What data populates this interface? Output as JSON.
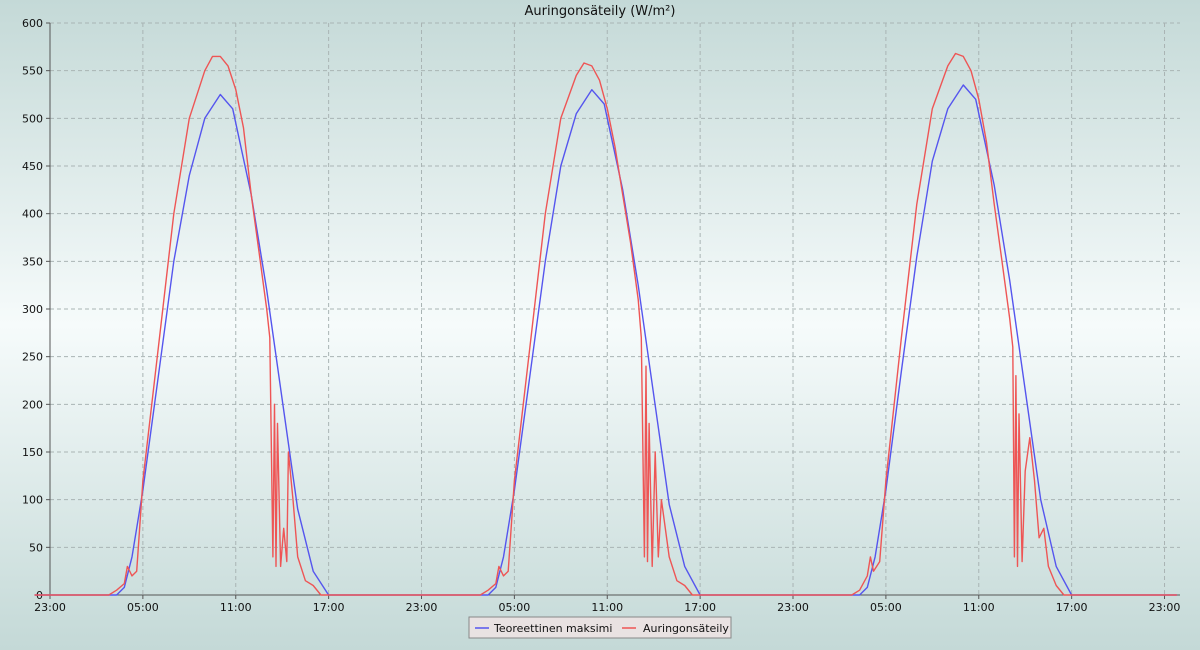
{
  "chart_data": {
    "type": "line",
    "title": "Auringonsäteily (W/m²)",
    "xlabel": "",
    "ylabel": "",
    "ylim": [
      0,
      600
    ],
    "yticks": [
      0,
      50,
      100,
      150,
      200,
      250,
      300,
      350,
      400,
      450,
      500,
      550,
      600
    ],
    "xlim_hours": [
      0,
      73
    ],
    "xticks": [
      {
        "hour": 0,
        "label": "23:00"
      },
      {
        "hour": 6,
        "label": "05:00"
      },
      {
        "hour": 12,
        "label": "11:00"
      },
      {
        "hour": 18,
        "label": "17:00"
      },
      {
        "hour": 24,
        "label": "23:00"
      },
      {
        "hour": 30,
        "label": "05:00"
      },
      {
        "hour": 36,
        "label": "11:00"
      },
      {
        "hour": 42,
        "label": "17:00"
      },
      {
        "hour": 48,
        "label": "23:00"
      },
      {
        "hour": 54,
        "label": "05:00"
      },
      {
        "hour": 60,
        "label": "11:00"
      },
      {
        "hour": 66,
        "label": "17:00"
      },
      {
        "hour": 72,
        "label": "23:00"
      }
    ],
    "grid": true,
    "legend_position": "bottom-center",
    "series": [
      {
        "name": "Teoreettinen maksimi",
        "color": "#5555ee",
        "points": [
          [
            -1,
            0
          ],
          [
            4.3,
            0
          ],
          [
            4.8,
            8
          ],
          [
            5.3,
            40
          ],
          [
            6,
            110
          ],
          [
            7,
            230
          ],
          [
            8,
            350
          ],
          [
            9,
            440
          ],
          [
            10,
            500
          ],
          [
            11,
            525
          ],
          [
            11.8,
            510
          ],
          [
            13,
            420
          ],
          [
            14,
            320
          ],
          [
            15,
            205
          ],
          [
            16,
            90
          ],
          [
            17,
            25
          ],
          [
            18,
            0
          ],
          [
            28.3,
            0
          ],
          [
            28.3,
            0
          ],
          [
            28.8,
            8
          ],
          [
            29.3,
            40
          ],
          [
            30,
            110
          ],
          [
            31,
            230
          ],
          [
            32,
            350
          ],
          [
            33,
            450
          ],
          [
            34,
            505
          ],
          [
            35,
            530
          ],
          [
            35.8,
            515
          ],
          [
            37,
            425
          ],
          [
            38,
            325
          ],
          [
            39,
            210
          ],
          [
            40,
            95
          ],
          [
            41,
            30
          ],
          [
            42,
            0
          ],
          [
            52.3,
            0
          ],
          [
            52.3,
            0
          ],
          [
            52.8,
            8
          ],
          [
            53.3,
            40
          ],
          [
            54,
            110
          ],
          [
            55,
            235
          ],
          [
            56,
            355
          ],
          [
            57,
            455
          ],
          [
            58,
            510
          ],
          [
            59,
            535
          ],
          [
            59.8,
            520
          ],
          [
            61,
            430
          ],
          [
            62,
            330
          ],
          [
            63,
            215
          ],
          [
            64,
            100
          ],
          [
            65,
            30
          ],
          [
            66,
            0
          ],
          [
            72.8,
            0
          ]
        ]
      },
      {
        "name": "Auringonsäteily",
        "color": "#ee5555",
        "points": [
          [
            -1,
            0
          ],
          [
            3.8,
            0
          ],
          [
            4.3,
            5
          ],
          [
            4.8,
            12
          ],
          [
            5,
            30
          ],
          [
            5.3,
            20
          ],
          [
            5.6,
            25
          ],
          [
            6,
            120
          ],
          [
            7,
            260
          ],
          [
            8,
            400
          ],
          [
            9,
            500
          ],
          [
            10,
            550
          ],
          [
            10.5,
            565
          ],
          [
            11,
            565
          ],
          [
            11.5,
            555
          ],
          [
            12,
            530
          ],
          [
            12.5,
            490
          ],
          [
            13,
            420
          ],
          [
            13.5,
            360
          ],
          [
            14,
            300
          ],
          [
            14.2,
            270
          ],
          [
            14.4,
            40
          ],
          [
            14.5,
            200
          ],
          [
            14.6,
            30
          ],
          [
            14.7,
            180
          ],
          [
            14.9,
            30
          ],
          [
            15.1,
            70
          ],
          [
            15.3,
            35
          ],
          [
            15.4,
            150
          ],
          [
            15.7,
            100
          ],
          [
            16,
            40
          ],
          [
            16.5,
            15
          ],
          [
            17,
            10
          ],
          [
            17.5,
            0
          ],
          [
            27.8,
            0
          ],
          [
            28.3,
            5
          ],
          [
            28.8,
            12
          ],
          [
            29,
            30
          ],
          [
            29.3,
            20
          ],
          [
            29.6,
            25
          ],
          [
            30,
            120
          ],
          [
            31,
            260
          ],
          [
            32,
            400
          ],
          [
            33,
            500
          ],
          [
            34,
            545
          ],
          [
            34.5,
            558
          ],
          [
            35,
            555
          ],
          [
            35.5,
            540
          ],
          [
            36,
            510
          ],
          [
            36.5,
            470
          ],
          [
            37,
            420
          ],
          [
            37.5,
            370
          ],
          [
            38,
            310
          ],
          [
            38.2,
            270
          ],
          [
            38.4,
            40
          ],
          [
            38.5,
            240
          ],
          [
            38.6,
            35
          ],
          [
            38.7,
            180
          ],
          [
            38.9,
            30
          ],
          [
            39.1,
            150
          ],
          [
            39.3,
            40
          ],
          [
            39.5,
            100
          ],
          [
            40,
            40
          ],
          [
            40.5,
            15
          ],
          [
            41,
            10
          ],
          [
            41.5,
            0
          ],
          [
            51.8,
            0
          ],
          [
            52.3,
            5
          ],
          [
            52.8,
            20
          ],
          [
            53,
            40
          ],
          [
            53.2,
            25
          ],
          [
            53.6,
            35
          ],
          [
            54,
            120
          ],
          [
            55,
            270
          ],
          [
            56,
            410
          ],
          [
            57,
            510
          ],
          [
            58,
            555
          ],
          [
            58.5,
            568
          ],
          [
            59,
            565
          ],
          [
            59.5,
            550
          ],
          [
            60,
            520
          ],
          [
            60.5,
            475
          ],
          [
            61,
            410
          ],
          [
            61.5,
            350
          ],
          [
            62,
            290
          ],
          [
            62.2,
            260
          ],
          [
            62.3,
            40
          ],
          [
            62.4,
            230
          ],
          [
            62.5,
            30
          ],
          [
            62.6,
            190
          ],
          [
            62.8,
            35
          ],
          [
            63,
            130
          ],
          [
            63.3,
            165
          ],
          [
            63.6,
            120
          ],
          [
            63.9,
            60
          ],
          [
            64.2,
            70
          ],
          [
            64.5,
            30
          ],
          [
            65,
            10
          ],
          [
            65.5,
            0
          ],
          [
            72.8,
            0
          ]
        ]
      }
    ]
  }
}
